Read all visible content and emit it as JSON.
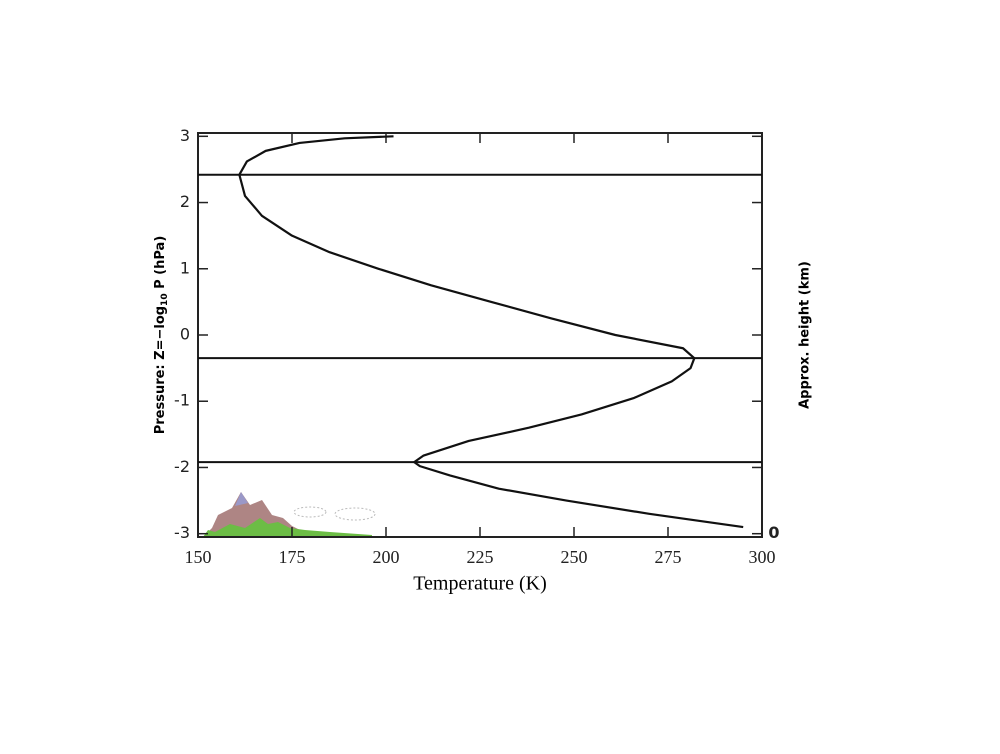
{
  "chart_data": {
    "type": "line",
    "xlabel": "Temperature (K)",
    "ylabel": {
      "text": "Pressure: Z=−log",
      "sub": "10",
      "after": " P (hPa)"
    },
    "y2label": "Approx. height (km)",
    "y2ticks": [
      {
        "value": -3,
        "label": "0"
      }
    ],
    "xlim": [
      150,
      300
    ],
    "xticks": [
      150,
      175,
      200,
      225,
      250,
      275,
      300
    ],
    "ylim": [
      -3.05,
      3.05
    ],
    "yticks": [
      -3,
      -2,
      -1,
      0,
      1,
      2,
      3
    ],
    "hlines": [
      -1.92,
      -0.35,
      2.42
    ],
    "series": [
      {
        "color": "#111111",
        "x": [
          295,
          270,
          248,
          230,
          217,
          209,
          207.5,
          210,
          222,
          238,
          252,
          266,
          276,
          281,
          282,
          279,
          261,
          244,
          228,
          212,
          198,
          185,
          175,
          167,
          162.5,
          161,
          163,
          168,
          177,
          189,
          202
        ],
        "values": [
          -2.9,
          -2.7,
          -2.5,
          -2.32,
          -2.12,
          -1.98,
          -1.92,
          -1.82,
          -1.6,
          -1.4,
          -1.2,
          -0.95,
          -0.7,
          -0.5,
          -0.35,
          -0.2,
          0,
          0.25,
          0.5,
          0.75,
          1,
          1.25,
          1.5,
          1.8,
          2.1,
          2.42,
          2.62,
          2.78,
          2.9,
          2.97,
          3.0
        ]
      }
    ]
  }
}
